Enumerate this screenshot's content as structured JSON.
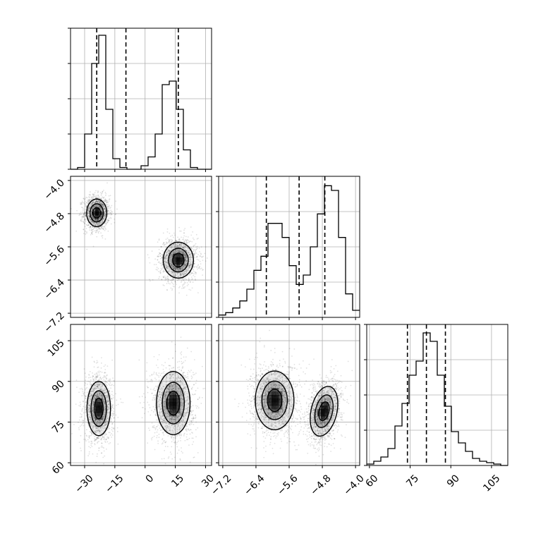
{
  "chart_data": {
    "type": "corner",
    "grid": true,
    "parameters": [
      {
        "index": 0,
        "range": [
          -37,
          33
        ],
        "ticks": [
          -30,
          -15,
          0,
          15,
          30
        ],
        "tick_labels": [
          "−30",
          "−15",
          "0",
          "15",
          "30"
        ],
        "quantiles": [
          -24,
          -9.5,
          16.5
        ]
      },
      {
        "index": 1,
        "range": [
          -7.3,
          -3.9
        ],
        "ticks": [
          -7.2,
          -6.4,
          -5.6,
          -4.8,
          -4.0
        ],
        "tick_labels": [
          "−7.2",
          "−6.4",
          "−5.6",
          "−4.8",
          "−4.0"
        ],
        "quantiles": [
          -6.15,
          -5.36,
          -4.74
        ]
      },
      {
        "index": 2,
        "range": [
          59,
          111
        ],
        "ticks": [
          60,
          75,
          90,
          105
        ],
        "tick_labels": [
          "60",
          "75",
          "90",
          "105"
        ],
        "quantiles": [
          74,
          81,
          88
        ]
      }
    ],
    "histograms": [
      {
        "param": 0,
        "type": "step",
        "bin_edges": [
          -37,
          -33.5,
          -30,
          -26.5,
          -23,
          -19.5,
          -16,
          -12.5,
          -9,
          -5.5,
          -2,
          1.5,
          5,
          8.5,
          12,
          15.5,
          19,
          22.5,
          26,
          29.5,
          33
        ],
        "counts": [
          0,
          1,
          20,
          60,
          76,
          34,
          6,
          1,
          0,
          0,
          2,
          7,
          20,
          48,
          50,
          34,
          11,
          1,
          0,
          0
        ],
        "ymax": 80
      },
      {
        "param": 1,
        "type": "step",
        "bin_edges": [
          -7.3,
          -7.13,
          -6.96,
          -6.79,
          -6.62,
          -6.45,
          -6.28,
          -6.11,
          -5.94,
          -5.77,
          -5.6,
          -5.43,
          -5.26,
          -5.09,
          -4.92,
          -4.75,
          -4.58,
          -4.41,
          -4.24,
          -4.07,
          -3.9
        ],
        "counts": [
          1,
          2,
          4,
          7,
          12,
          20,
          26,
          40,
          40,
          34,
          22,
          14,
          18,
          30,
          44,
          56,
          54,
          34,
          10,
          3
        ],
        "ymax": 60
      },
      {
        "param": 2,
        "type": "step",
        "bin_edges": [
          59,
          61.6,
          64.2,
          66.8,
          69.4,
          72,
          74.6,
          77.2,
          79.8,
          82.4,
          85,
          87.6,
          90.2,
          92.8,
          95.4,
          98,
          100.6,
          103.2,
          105.8,
          108.4,
          111
        ],
        "counts": [
          1,
          3,
          6,
          12,
          28,
          44,
          64,
          74,
          94,
          88,
          64,
          42,
          24,
          16,
          10,
          5,
          3,
          2,
          1,
          0
        ],
        "ymax": 100
      }
    ],
    "joint_modes": [
      {
        "params": [
          0,
          1
        ],
        "modes": [
          {
            "center": [
              -24,
              -4.78
            ],
            "sd": [
              3.0,
              0.2
            ],
            "weight": 0.5
          },
          {
            "center": [
              16.5,
              -5.92
            ],
            "sd": [
              4.5,
              0.26
            ],
            "weight": 0.5
          }
        ]
      },
      {
        "params": [
          0,
          2
        ],
        "modes": [
          {
            "center": [
              -23,
              80
            ],
            "sd": [
              3.5,
              6.0
            ],
            "weight": 0.5
          },
          {
            "center": [
              14,
              82
            ],
            "sd": [
              5.0,
              7.0
            ],
            "weight": 0.5
          }
        ]
      },
      {
        "params": [
          1,
          2
        ],
        "modes": [
          {
            "center": [
              -5.95,
              83
            ],
            "sd": [
              0.28,
              6.5
            ],
            "weight": 0.5,
            "rho": 0.0
          },
          {
            "center": [
              -4.76,
              79
            ],
            "sd": [
              0.2,
              5.5
            ],
            "weight": 0.5,
            "rho": 0.3
          }
        ]
      }
    ],
    "contour_levels": [
      0.25,
      0.55,
      0.82
    ]
  }
}
